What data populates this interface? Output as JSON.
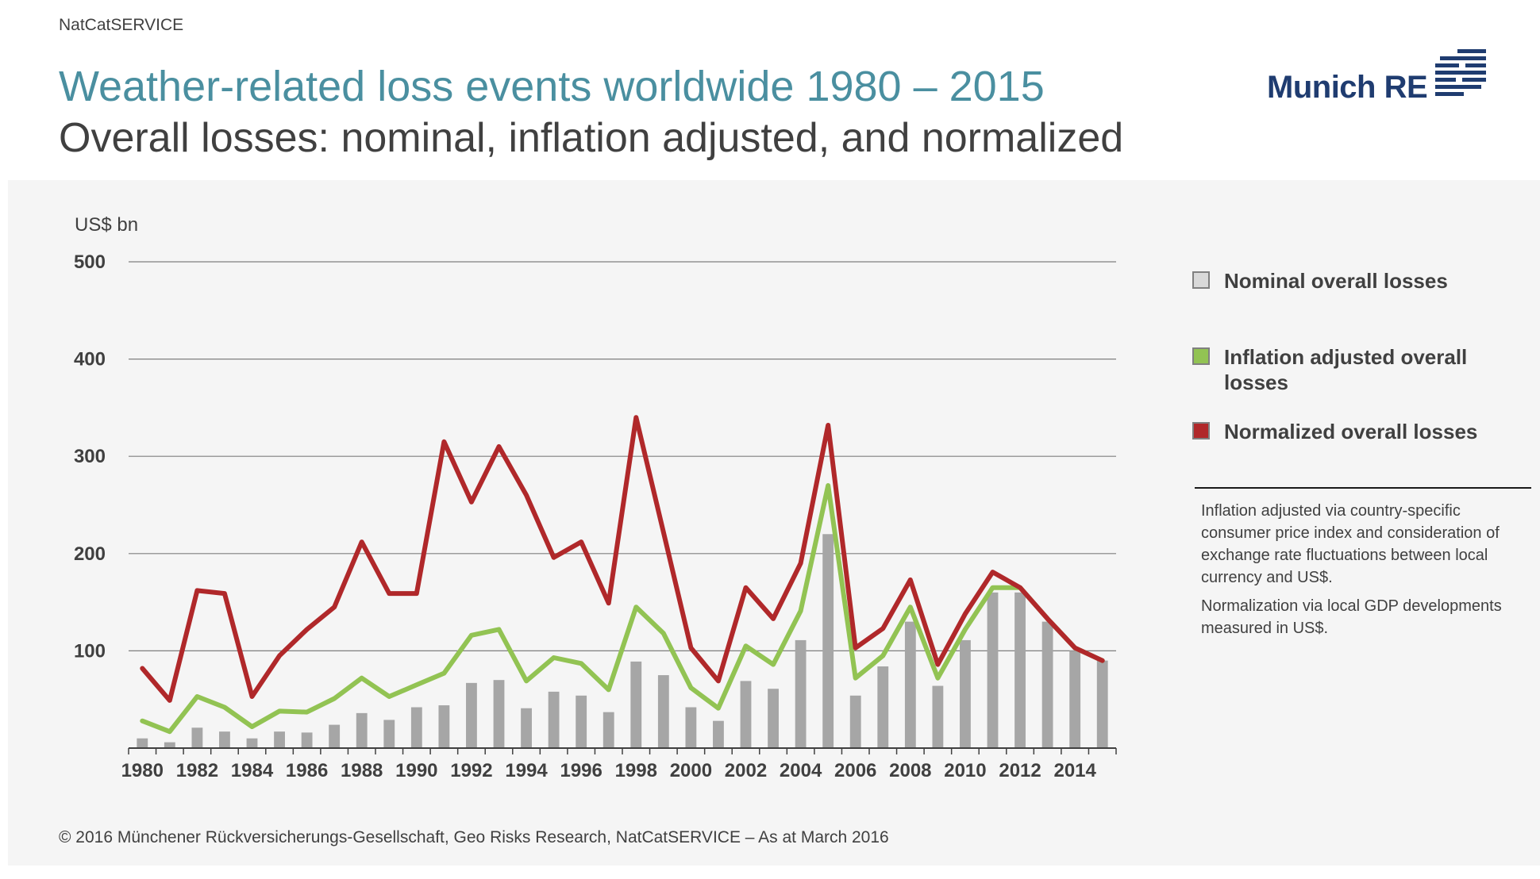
{
  "header": {
    "service": "NatCatSERVICE",
    "title": "Weather-related loss events worldwide 1980 – 2015",
    "subtitle": "Overall losses: nominal, inflation adjusted, and normalized"
  },
  "logo": {
    "text": "Munich RE"
  },
  "colors": {
    "nominal": "#a6a6a6",
    "inflation": "#92c353",
    "normalized": "#b0282a",
    "title": "#4a8fa0",
    "panel": "#f5f5f5"
  },
  "legend": {
    "nominal": "Nominal overall losses",
    "inflation": "Inflation adjusted overall losses",
    "normalized": "Normalized overall losses"
  },
  "notes": [
    "Inflation adjusted via country-specific consumer price index and consideration of exchange rate fluctuations between local currency and US$.",
    "Normalization via local GDP developments measured in US$."
  ],
  "footer": {
    "copyright": "© 2016 Münchener Rückversicherungs-Gesellschaft, Geo Risks Research, NatCatSERVICE – As at March 2016"
  },
  "chart_data": {
    "type": "bar",
    "ylabel": "US$ bn",
    "ylim": [
      0,
      500
    ],
    "yticks": [
      100,
      200,
      300,
      400,
      500
    ],
    "grid": true,
    "legend_position": "right",
    "x": [
      1980,
      1981,
      1982,
      1983,
      1984,
      1985,
      1986,
      1987,
      1988,
      1989,
      1990,
      1991,
      1992,
      1993,
      1994,
      1995,
      1996,
      1997,
      1998,
      1999,
      2000,
      2001,
      2002,
      2003,
      2004,
      2005,
      2006,
      2007,
      2008,
      2009,
      2010,
      2011,
      2012,
      2013,
      2014,
      2015
    ],
    "xtick_labels": [
      "1980",
      "1982",
      "1984",
      "1986",
      "1988",
      "1990",
      "1992",
      "1994",
      "1996",
      "1998",
      "2000",
      "2002",
      "2004",
      "2006",
      "2008",
      "2010",
      "2012",
      "2014"
    ],
    "series": [
      {
        "name": "Nominal overall losses",
        "type": "bar",
        "values": [
          10,
          6,
          21,
          17,
          10,
          17,
          16,
          24,
          36,
          29,
          42,
          44,
          67,
          70,
          41,
          58,
          54,
          37,
          89,
          75,
          42,
          28,
          69,
          61,
          111,
          220,
          54,
          84,
          130,
          64,
          111,
          160,
          160,
          130,
          100,
          90
        ]
      },
      {
        "name": "Inflation adjusted overall losses",
        "type": "line",
        "values": [
          28,
          17,
          53,
          42,
          22,
          38,
          37,
          51,
          72,
          53,
          65,
          77,
          116,
          122,
          69,
          93,
          87,
          60,
          145,
          118,
          62,
          41,
          105,
          86,
          141,
          270,
          72,
          95,
          145,
          72,
          122,
          165,
          165,
          133,
          103,
          90
        ]
      },
      {
        "name": "Normalized overall losses",
        "type": "line",
        "values": [
          82,
          49,
          162,
          159,
          53,
          95,
          122,
          145,
          212,
          159,
          159,
          315,
          253,
          310,
          260,
          196,
          212,
          149,
          340,
          222,
          103,
          69,
          165,
          133,
          190,
          332,
          103,
          123,
          173,
          86,
          138,
          181,
          165,
          133,
          103,
          90
        ]
      }
    ]
  }
}
